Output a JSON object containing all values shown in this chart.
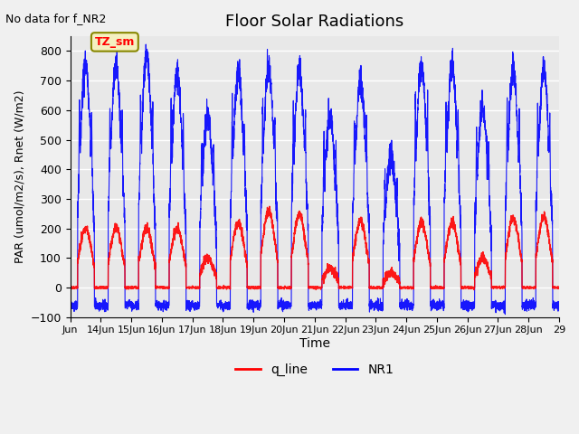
{
  "title": "Floor Solar Radiations",
  "xlabel": "Time",
  "ylabel": "PAR (umol/m2/s), Rnet (W/m2)",
  "top_left_text": "No data for f_NR2",
  "annotation_box": "TZ_sm",
  "ylim": [
    -100,
    850
  ],
  "yticks": [
    -100,
    0,
    100,
    200,
    300,
    400,
    500,
    600,
    700,
    800
  ],
  "xlim": [
    13,
    29
  ],
  "xtick_positions": [
    13,
    14,
    15,
    16,
    17,
    18,
    19,
    20,
    21,
    22,
    23,
    24,
    25,
    26,
    27,
    28,
    29
  ],
  "xtick_labels": [
    "Jun",
    "14Jun",
    "15Jun",
    "16Jun",
    "17Jun",
    "18Jun",
    "19Jun",
    "20Jun",
    "21Jun",
    "22Jun",
    "23Jun",
    "24Jun",
    "25Jun",
    "26Jun",
    "27Jun",
    "28Jun",
    "29"
  ],
  "fig_bg_color": "#f0f0f0",
  "plot_bg_color": "#e8e8e8",
  "grid_color": "white",
  "line_red_color": "#ff0000",
  "line_blue_color": "#0000ff",
  "legend_labels": [
    "q_line",
    "NR1"
  ],
  "legend_colors": [
    "#ff0000",
    "#0000ff"
  ],
  "num_days": 16,
  "samples_per_day": 288,
  "blue_peaks": [
    748,
    745,
    778,
    730,
    580,
    735,
    750,
    745,
    580,
    705,
    435,
    755,
    755,
    605,
    735,
    740
  ],
  "red_peaks": [
    200,
    200,
    200,
    200,
    100,
    220,
    260,
    250,
    65,
    225,
    50,
    220,
    220,
    100,
    235,
    240
  ]
}
